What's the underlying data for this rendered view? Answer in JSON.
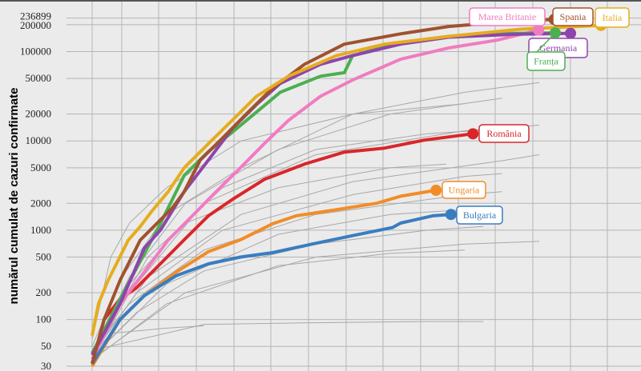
{
  "chart_data": {
    "type": "line",
    "title": "",
    "xlabel": "",
    "ylabel": "numărul cumulat de cazuri confirmate",
    "yscale": "log",
    "ylim": [
      30,
      236899
    ],
    "yticks": [
      30,
      50,
      100,
      200,
      500,
      1000,
      2000,
      5000,
      10000,
      20000,
      50000,
      100000,
      200000,
      236899
    ],
    "ytick_labels": [
      "30",
      "50",
      "100",
      "200",
      "500",
      "1000",
      "2000",
      "5000",
      "10000",
      "20000",
      "50000",
      "100000",
      "200000",
      "236899"
    ],
    "xlim": [
      -7,
      148
    ],
    "x_grid_days": [
      0,
      8,
      18,
      28,
      38,
      48,
      58,
      68,
      78,
      88,
      98,
      108,
      118,
      128,
      138
    ],
    "grid": true,
    "series": [
      {
        "name": "Italia",
        "color": "#e6ac1e",
        "points": [
          [
            0,
            66
          ],
          [
            1.7,
            150
          ],
          [
            4.3,
            275
          ],
          [
            9.7,
            775
          ],
          [
            12.9,
            1100
          ],
          [
            16.1,
            1650
          ],
          [
            20.4,
            2700
          ],
          [
            24.7,
            5000
          ],
          [
            31.2,
            9300
          ],
          [
            37.6,
            17000
          ],
          [
            44.1,
            31600
          ],
          [
            52.7,
            53000
          ],
          [
            65.6,
            90000
          ],
          [
            78.5,
            121000
          ],
          [
            95.7,
            148000
          ],
          [
            115,
            178000
          ],
          [
            136.6,
            196000
          ]
        ]
      },
      {
        "name": "Spania",
        "color": "#a0522d",
        "points": [
          [
            0,
            32
          ],
          [
            3.2,
            100
          ],
          [
            7.5,
            275
          ],
          [
            12.9,
            775
          ],
          [
            21.5,
            1770
          ],
          [
            24.7,
            2700
          ],
          [
            29,
            6100
          ],
          [
            35.5,
            11300
          ],
          [
            41.9,
            21000
          ],
          [
            48.4,
            39000
          ],
          [
            57,
            72000
          ],
          [
            67.7,
            121000
          ],
          [
            82.8,
            158000
          ],
          [
            95.7,
            191000
          ],
          [
            112.9,
            219000
          ],
          [
            124,
            229000
          ]
        ]
      },
      {
        "name": "Germania",
        "color": "#8e44ad",
        "points": [
          [
            0,
            40
          ],
          [
            7.5,
            150
          ],
          [
            14,
            630
          ],
          [
            18.3,
            1000
          ],
          [
            24.7,
            2700
          ],
          [
            31.2,
            6100
          ],
          [
            37.6,
            13700
          ],
          [
            44.1,
            25500
          ],
          [
            50.5,
            44000
          ],
          [
            61.3,
            72000
          ],
          [
            69.9,
            90000
          ],
          [
            82.8,
            121000
          ],
          [
            95.7,
            145000
          ],
          [
            112.9,
            156000
          ],
          [
            128.4,
            160000
          ]
        ]
      },
      {
        "name": "Franța",
        "color": "#4caf50",
        "points": [
          [
            0,
            42
          ],
          [
            7.5,
            170
          ],
          [
            18.3,
            1180
          ],
          [
            24.7,
            4100
          ],
          [
            31.2,
            7600
          ],
          [
            37.6,
            12500
          ],
          [
            44.1,
            21000
          ],
          [
            50.5,
            35000
          ],
          [
            61.3,
            53000
          ],
          [
            67.7,
            58000
          ],
          [
            69.9,
            90000
          ],
          [
            82.8,
            126000
          ],
          [
            95.7,
            148000
          ],
          [
            112.9,
            160000
          ],
          [
            124.3,
            162000
          ]
        ]
      },
      {
        "name": "Marea Britanie",
        "color": "#f07cc0",
        "points": [
          [
            0,
            36
          ],
          [
            7.5,
            150
          ],
          [
            14,
            340
          ],
          [
            20.4,
            775
          ],
          [
            26.9,
            1450
          ],
          [
            33.3,
            2700
          ],
          [
            39.8,
            5000
          ],
          [
            46.2,
            9300
          ],
          [
            52.7,
            17000
          ],
          [
            61.3,
            31600
          ],
          [
            69.9,
            48000
          ],
          [
            82.8,
            82000
          ],
          [
            95.7,
            110000
          ],
          [
            108.6,
            134000
          ],
          [
            119.8,
            174000
          ]
        ]
      },
      {
        "name": "România",
        "color": "#d9262b",
        "points": [
          [
            0,
            32
          ],
          [
            3.2,
            100
          ],
          [
            7.5,
            170
          ],
          [
            11.8,
            225
          ],
          [
            18.3,
            420
          ],
          [
            24.7,
            780
          ],
          [
            31.2,
            1450
          ],
          [
            37.6,
            2200
          ],
          [
            46.2,
            3700
          ],
          [
            57,
            5500
          ],
          [
            67.7,
            7500
          ],
          [
            78.5,
            8300
          ],
          [
            89.2,
            10200
          ],
          [
            102.2,
            12000
          ]
        ]
      },
      {
        "name": "Ungaria",
        "color": "#f28c28",
        "points": [
          [
            0,
            30
          ],
          [
            7.5,
            100
          ],
          [
            14,
            185
          ],
          [
            22.6,
            340
          ],
          [
            31.2,
            575
          ],
          [
            39.8,
            780
          ],
          [
            48.4,
            1180
          ],
          [
            54.8,
            1450
          ],
          [
            65.6,
            1700
          ],
          [
            76.3,
            2000
          ],
          [
            82.8,
            2400
          ],
          [
            92.3,
            2800
          ]
        ]
      },
      {
        "name": "Bulgaria",
        "color": "#3a7dbf",
        "points": [
          [
            0,
            32
          ],
          [
            7.5,
            100
          ],
          [
            14,
            185
          ],
          [
            22.6,
            310
          ],
          [
            31.2,
            420
          ],
          [
            39.8,
            500
          ],
          [
            48.4,
            560
          ],
          [
            59.1,
            700
          ],
          [
            69.9,
            870
          ],
          [
            80.6,
            1070
          ],
          [
            82.8,
            1200
          ],
          [
            91.4,
            1450
          ],
          [
            96.3,
            1500
          ]
        ]
      }
    ],
    "other_series_color": "#a8a8a8",
    "other_series": [
      [
        [
          0,
          60
        ],
        [
          5,
          500
        ],
        [
          10,
          1200
        ],
        [
          20,
          3000
        ],
        [
          40,
          10000
        ],
        [
          70,
          20000
        ],
        [
          100,
          26000
        ]
      ],
      [
        [
          0,
          50
        ],
        [
          8,
          300
        ],
        [
          20,
          1500
        ],
        [
          40,
          5000
        ],
        [
          70,
          20000
        ],
        [
          100,
          35000
        ],
        [
          120,
          45000
        ]
      ],
      [
        [
          0,
          40
        ],
        [
          10,
          300
        ],
        [
          25,
          2000
        ],
        [
          50,
          8000
        ],
        [
          80,
          20000
        ],
        [
          110,
          30000
        ]
      ],
      [
        [
          0,
          42
        ],
        [
          15,
          500
        ],
        [
          35,
          3000
        ],
        [
          60,
          8000
        ],
        [
          90,
          12000
        ],
        [
          115,
          14000
        ]
      ],
      [
        [
          0,
          35
        ],
        [
          10,
          200
        ],
        [
          30,
          2000
        ],
        [
          60,
          7000
        ],
        [
          100,
          13000
        ],
        [
          120,
          15000
        ]
      ],
      [
        [
          0,
          40
        ],
        [
          15,
          300
        ],
        [
          40,
          1500
        ],
        [
          70,
          3500
        ],
        [
          110,
          6000
        ],
        [
          120,
          7000
        ]
      ],
      [
        [
          0,
          36
        ],
        [
          10,
          250
        ],
        [
          25,
          1200
        ],
        [
          50,
          3000
        ],
        [
          80,
          5000
        ],
        [
          95,
          5500
        ]
      ],
      [
        [
          0,
          40
        ],
        [
          12,
          200
        ],
        [
          35,
          1000
        ],
        [
          70,
          2500
        ],
        [
          100,
          4000
        ],
        [
          110,
          4300
        ]
      ],
      [
        [
          0,
          45
        ],
        [
          10,
          150
        ],
        [
          30,
          600
        ],
        [
          60,
          1500
        ],
        [
          100,
          2500
        ],
        [
          110,
          2700
        ]
      ],
      [
        [
          0,
          38
        ],
        [
          20,
          250
        ],
        [
          50,
          900
        ],
        [
          80,
          1500
        ],
        [
          110,
          1800
        ]
      ],
      [
        [
          0,
          38
        ],
        [
          12,
          120
        ],
        [
          30,
          350
        ],
        [
          60,
          700
        ],
        [
          90,
          1000
        ],
        [
          105,
          1100
        ]
      ],
      [
        [
          0,
          36
        ],
        [
          25,
          200
        ],
        [
          60,
          500
        ],
        [
          100,
          700
        ],
        [
          120,
          750
        ]
      ],
      [
        [
          0,
          35
        ],
        [
          20,
          150
        ],
        [
          50,
          400
        ],
        [
          80,
          550
        ],
        [
          100,
          600
        ]
      ],
      [
        [
          0,
          45
        ],
        [
          30,
          88
        ],
        [
          60,
          92
        ],
        [
          90,
          95
        ],
        [
          105,
          95
        ]
      ],
      [
        [
          0,
          40
        ],
        [
          5,
          70
        ],
        [
          20,
          80
        ],
        [
          30,
          85
        ]
      ]
    ]
  }
}
